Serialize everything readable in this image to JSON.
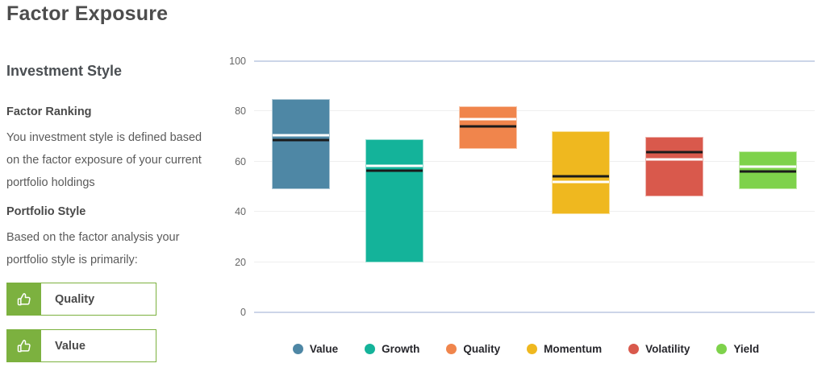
{
  "page_title": "Factor Exposure",
  "sidebar": {
    "section_title": "Investment Style",
    "factor_ranking_heading": "Factor Ranking",
    "factor_ranking_text": "You investment style is defined based on the factor exposure of your current portfolio holdings",
    "portfolio_style_heading": "Portfolio Style",
    "portfolio_style_text": "Based on the factor analysis your portfolio style is primarily:",
    "badge_color": "#7cb13f",
    "badges": [
      {
        "label": "Quality",
        "icon": "thumbs-up-icon"
      },
      {
        "label": "Value",
        "icon": "thumbs-up-icon"
      }
    ]
  },
  "chart_data": {
    "type": "bar",
    "subtype": "floating-range-bar",
    "title": "",
    "xlabel": "",
    "ylabel": "",
    "ylim": [
      0,
      100
    ],
    "yticks": [
      0,
      20,
      40,
      60,
      80,
      100
    ],
    "grid": true,
    "legend_position": "bottom",
    "categories": [
      "Value",
      "Growth",
      "Quality",
      "Momentum",
      "Volatility",
      "Yield"
    ],
    "series": [
      {
        "name": "Value",
        "color": "#4e87a5",
        "low": 49,
        "high": 85,
        "white_marker": 70.5,
        "black_marker": 68.5
      },
      {
        "name": "Growth",
        "color": "#14b39a",
        "low": 20,
        "high": 69,
        "white_marker": 58.5,
        "black_marker": 56.5
      },
      {
        "name": "Quality",
        "color": "#f0854c",
        "low": 65,
        "high": 82,
        "white_marker": 77,
        "black_marker": 74
      },
      {
        "name": "Momentum",
        "color": "#efb81f",
        "low": 39,
        "high": 72,
        "white_marker": 52,
        "black_marker": 54
      },
      {
        "name": "Volatility",
        "color": "#d9594c",
        "low": 46,
        "high": 70,
        "white_marker": 61,
        "black_marker": 64
      },
      {
        "name": "Yield",
        "color": "#7ed24b",
        "low": 49,
        "high": 64,
        "white_marker": 58,
        "black_marker": 56
      }
    ],
    "colors": {
      "grid_edge": "#ccd5e8",
      "grid_line": "#efefef",
      "axis_label": "#666666",
      "legend_text": "#26262b",
      "white_marker": "#ffffff",
      "black_marker": "#1a1a1a"
    }
  }
}
